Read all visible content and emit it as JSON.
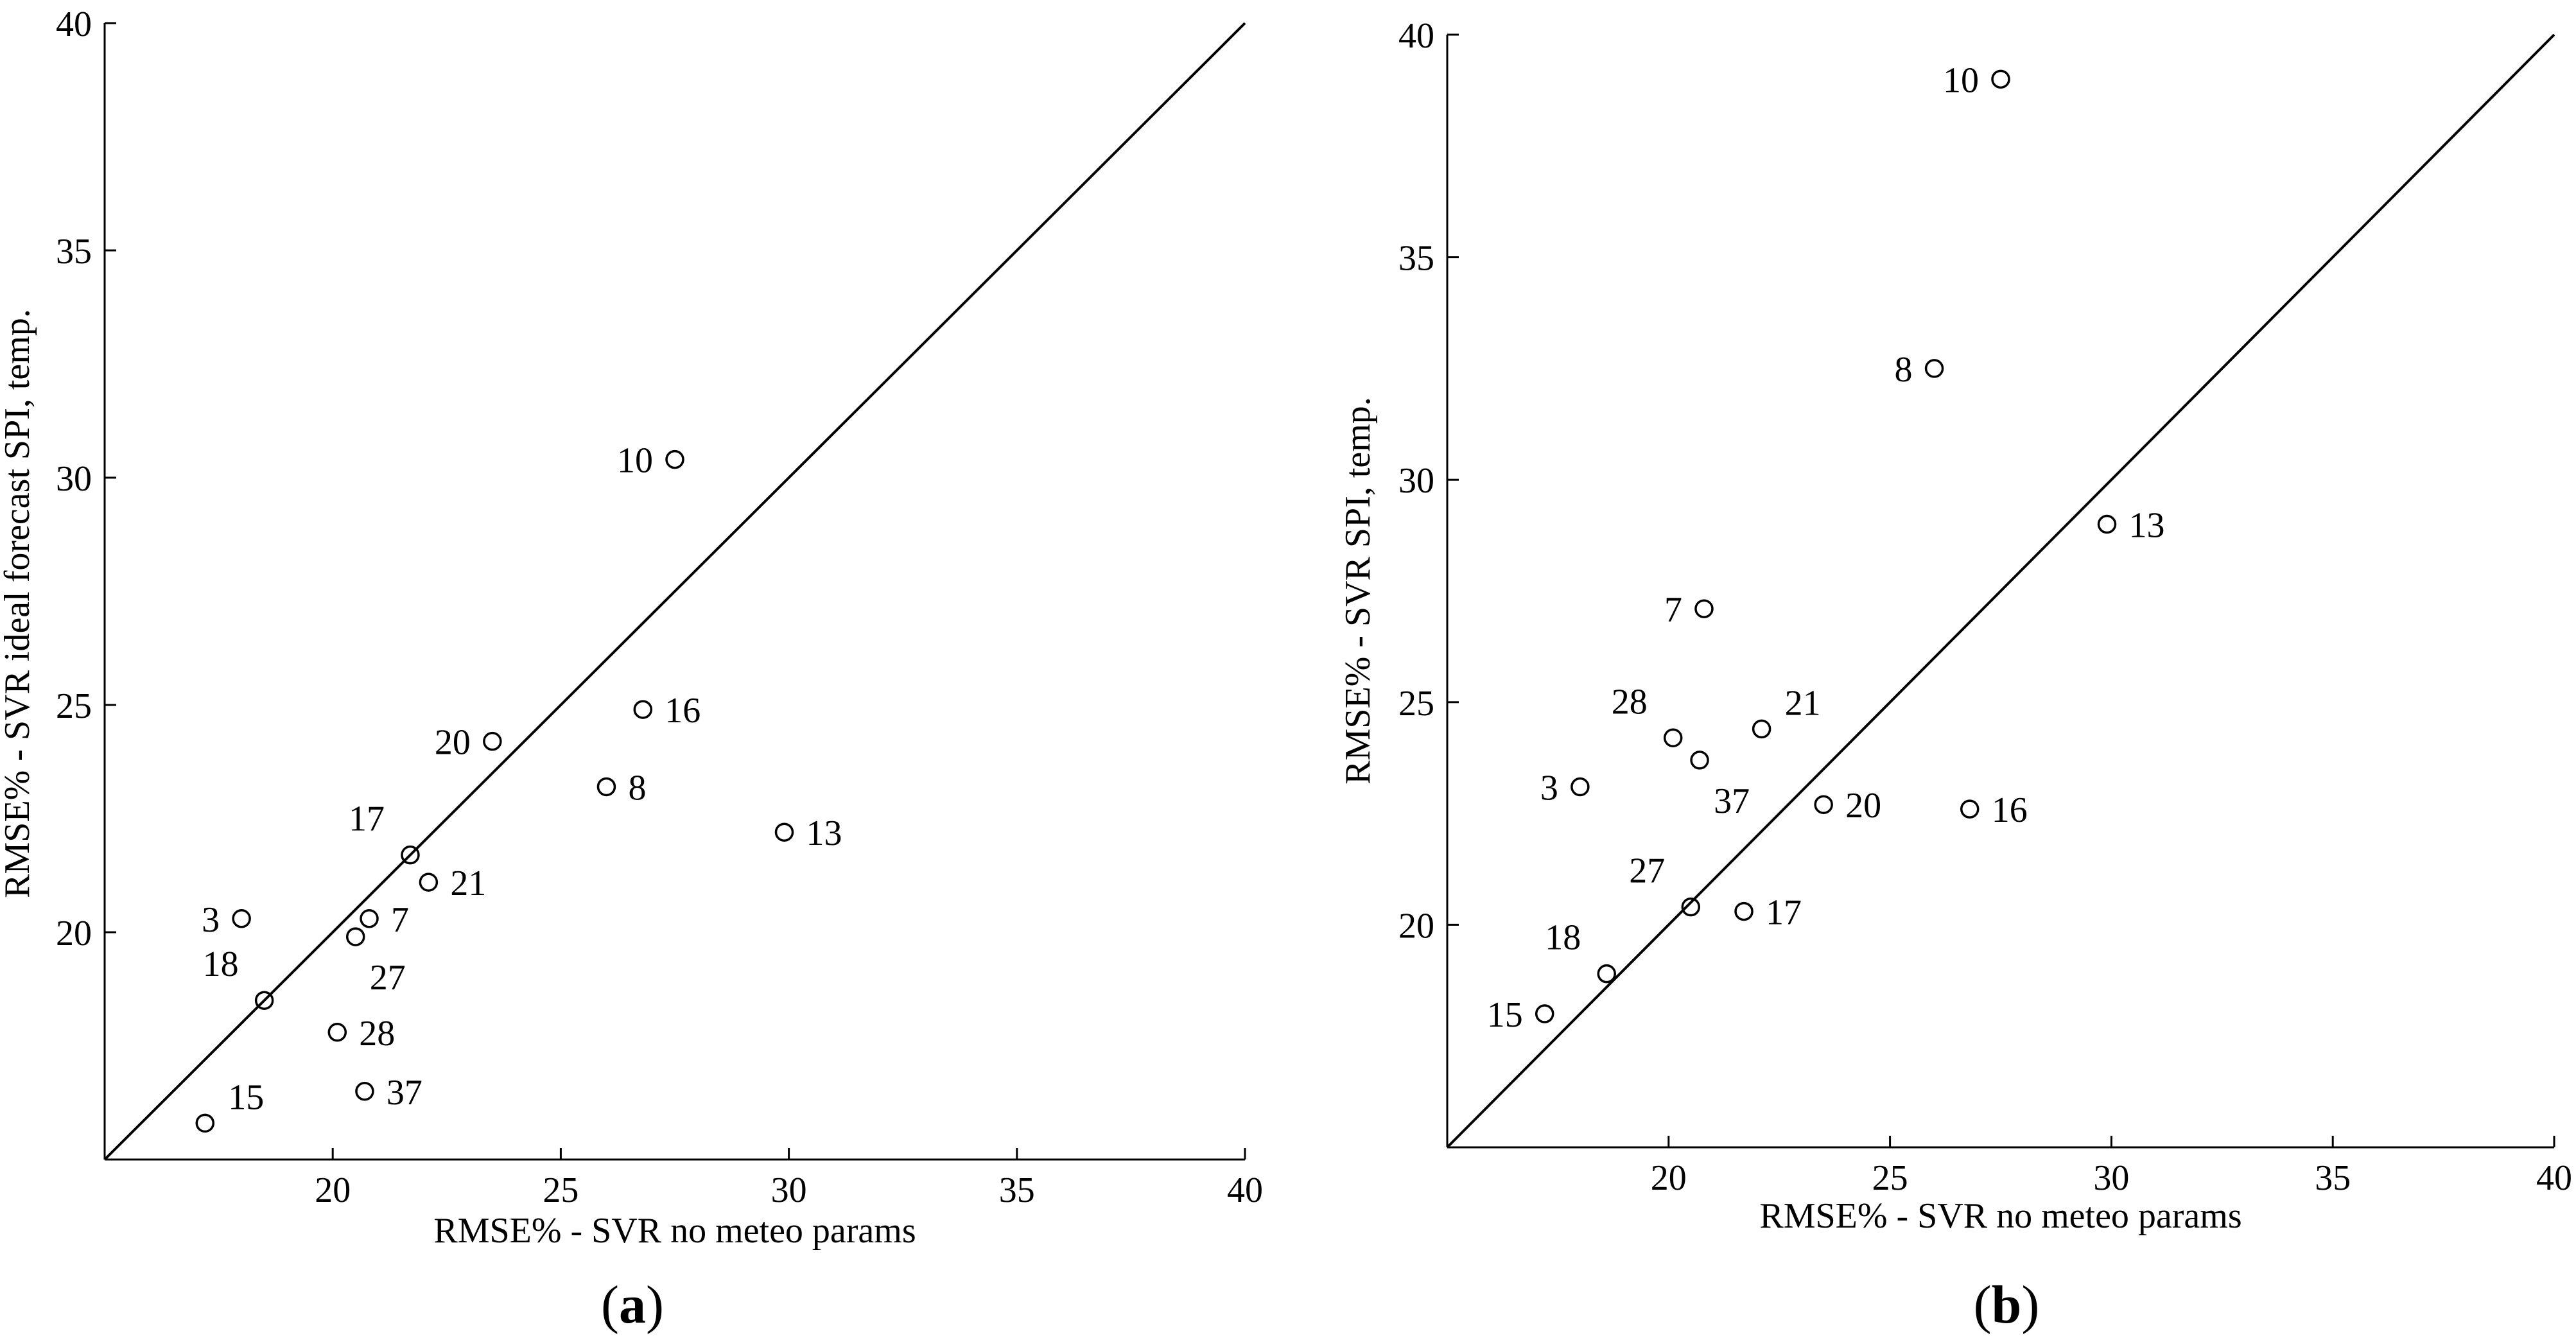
{
  "chart_data": [
    {
      "id": "a",
      "type": "scatter",
      "panel_label": "a",
      "xlabel": "RMSE% - SVR no meteo params",
      "ylabel": "RMSE% - SVR ideal forecast SPI, temp.",
      "xlim": [
        15,
        40
      ],
      "ylim": [
        15,
        40
      ],
      "x_ticks": [
        20,
        25,
        30,
        35,
        40
      ],
      "y_ticks": [
        20,
        25,
        30,
        35,
        40
      ],
      "diagonal": true,
      "points": [
        {
          "label": "3",
          "x": 18.0,
          "y": 20.3,
          "label_pos": "left"
        },
        {
          "label": "7",
          "x": 20.8,
          "y": 20.3,
          "label_pos": "right"
        },
        {
          "label": "8",
          "x": 26.0,
          "y": 23.2,
          "label_pos": "right"
        },
        {
          "label": "10",
          "x": 27.5,
          "y": 30.4,
          "label_pos": "left"
        },
        {
          "label": "13",
          "x": 29.9,
          "y": 22.2,
          "label_pos": "right"
        },
        {
          "label": "15",
          "x": 17.2,
          "y": 15.8,
          "label_pos": "right-up"
        },
        {
          "label": "16",
          "x": 26.8,
          "y": 24.9,
          "label_pos": "right"
        },
        {
          "label": "17",
          "x": 21.7,
          "y": 21.7,
          "label_pos": "left-up"
        },
        {
          "label": "18",
          "x": 18.5,
          "y": 18.5,
          "label_pos": "left-up"
        },
        {
          "label": "20",
          "x": 23.5,
          "y": 24.2,
          "label_pos": "left"
        },
        {
          "label": "21",
          "x": 22.1,
          "y": 21.1,
          "label_pos": "right"
        },
        {
          "label": "27",
          "x": 20.5,
          "y": 19.9,
          "label_pos": "below-right"
        },
        {
          "label": "28",
          "x": 20.1,
          "y": 17.8,
          "label_pos": "right"
        },
        {
          "label": "37",
          "x": 20.7,
          "y": 16.5,
          "label_pos": "right"
        }
      ]
    },
    {
      "id": "b",
      "type": "scatter",
      "panel_label": "b",
      "xlabel": "RMSE% - SVR no meteo params",
      "ylabel": "RMSE% - SVR SPI, temp.",
      "xlim": [
        15,
        40
      ],
      "ylim": [
        15,
        40
      ],
      "x_ticks": [
        20,
        25,
        30,
        35,
        40
      ],
      "y_ticks": [
        20,
        25,
        30,
        35,
        40
      ],
      "diagonal": true,
      "points": [
        {
          "label": "3",
          "x": 18.0,
          "y": 23.1,
          "label_pos": "left"
        },
        {
          "label": "7",
          "x": 20.8,
          "y": 27.1,
          "label_pos": "left"
        },
        {
          "label": "8",
          "x": 26.0,
          "y": 32.5,
          "label_pos": "left"
        },
        {
          "label": "10",
          "x": 27.5,
          "y": 39.0,
          "label_pos": "left"
        },
        {
          "label": "13",
          "x": 29.9,
          "y": 29.0,
          "label_pos": "right"
        },
        {
          "label": "15",
          "x": 17.2,
          "y": 18.0,
          "label_pos": "left"
        },
        {
          "label": "16",
          "x": 26.8,
          "y": 22.6,
          "label_pos": "right"
        },
        {
          "label": "17",
          "x": 21.7,
          "y": 20.3,
          "label_pos": "right"
        },
        {
          "label": "18",
          "x": 18.6,
          "y": 18.9,
          "label_pos": "left-up"
        },
        {
          "label": "20",
          "x": 23.5,
          "y": 22.7,
          "label_pos": "right"
        },
        {
          "label": "21",
          "x": 22.1,
          "y": 24.4,
          "label_pos": "right-up"
        },
        {
          "label": "27",
          "x": 20.5,
          "y": 20.4,
          "label_pos": "left-up"
        },
        {
          "label": "28",
          "x": 20.1,
          "y": 24.2,
          "label_pos": "left-up"
        },
        {
          "label": "37",
          "x": 20.7,
          "y": 23.7,
          "label_pos": "below-right"
        }
      ]
    }
  ]
}
